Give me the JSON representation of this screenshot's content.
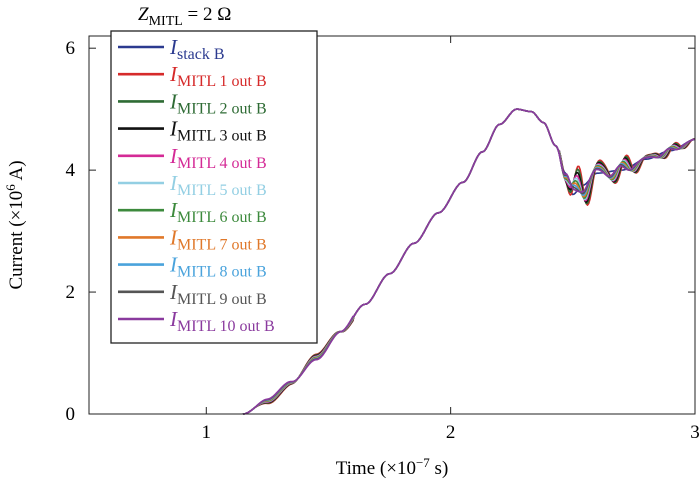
{
  "chart_data": {
    "type": "line",
    "title": {
      "main": "Z",
      "sub": "MITL",
      "rest": " = 2 Ω"
    },
    "xlabel": {
      "pre": "Time (×10",
      "sup": "−7",
      "post": " s)"
    },
    "ylabel": {
      "pre": "Current (×10",
      "sup": "6",
      "post": " A)"
    },
    "xlim": [
      0.52,
      3.0
    ],
    "ylim": [
      0,
      6.2
    ],
    "xticks": [
      1,
      2,
      3
    ],
    "yticks": [
      0,
      2,
      4,
      6
    ],
    "grid": false,
    "legend_position": "top-left",
    "series": [
      {
        "name": "I",
        "sub": "stack B",
        "color": "#2b3a8f",
        "amp": 0.0,
        "phase": 0.0,
        "shift": 0.0
      },
      {
        "name": "I",
        "sub": "MITL 1 out B",
        "color": "#d62a2a",
        "amp": 0.55,
        "phase": 0.0,
        "shift": -0.06
      },
      {
        "name": "I",
        "sub": "MITL 2 out B",
        "color": "#2e6b34",
        "amp": 0.5,
        "phase": 0.15,
        "shift": -0.05
      },
      {
        "name": "I",
        "sub": "MITL 3 out B",
        "color": "#111111",
        "amp": 0.45,
        "phase": 0.3,
        "shift": -0.04
      },
      {
        "name": "I",
        "sub": "MITL 4 out B",
        "color": "#d42a96",
        "amp": 0.4,
        "phase": 0.45,
        "shift": -0.03
      },
      {
        "name": "I",
        "sub": "MITL 5 out B",
        "color": "#93cfe3",
        "amp": 0.36,
        "phase": 0.6,
        "shift": -0.02
      },
      {
        "name": "I",
        "sub": "MITL 6 out B",
        "color": "#3c8a3c",
        "amp": 0.32,
        "phase": 0.75,
        "shift": -0.01
      },
      {
        "name": "I",
        "sub": "MITL 7 out B",
        "color": "#e0782a",
        "amp": 0.28,
        "phase": 0.9,
        "shift": 0.0
      },
      {
        "name": "I",
        "sub": "MITL 8 out B",
        "color": "#4aa3dc",
        "amp": 0.24,
        "phase": 1.05,
        "shift": 0.01
      },
      {
        "name": "I",
        "sub": "MITL 9 out B",
        "color": "#555555",
        "amp": 0.2,
        "phase": 1.2,
        "shift": 0.02
      },
      {
        "name": "I",
        "sub": "MITL 10 out B",
        "color": "#8a3a9e",
        "amp": 0.16,
        "phase": 1.35,
        "shift": 0.03
      }
    ]
  }
}
